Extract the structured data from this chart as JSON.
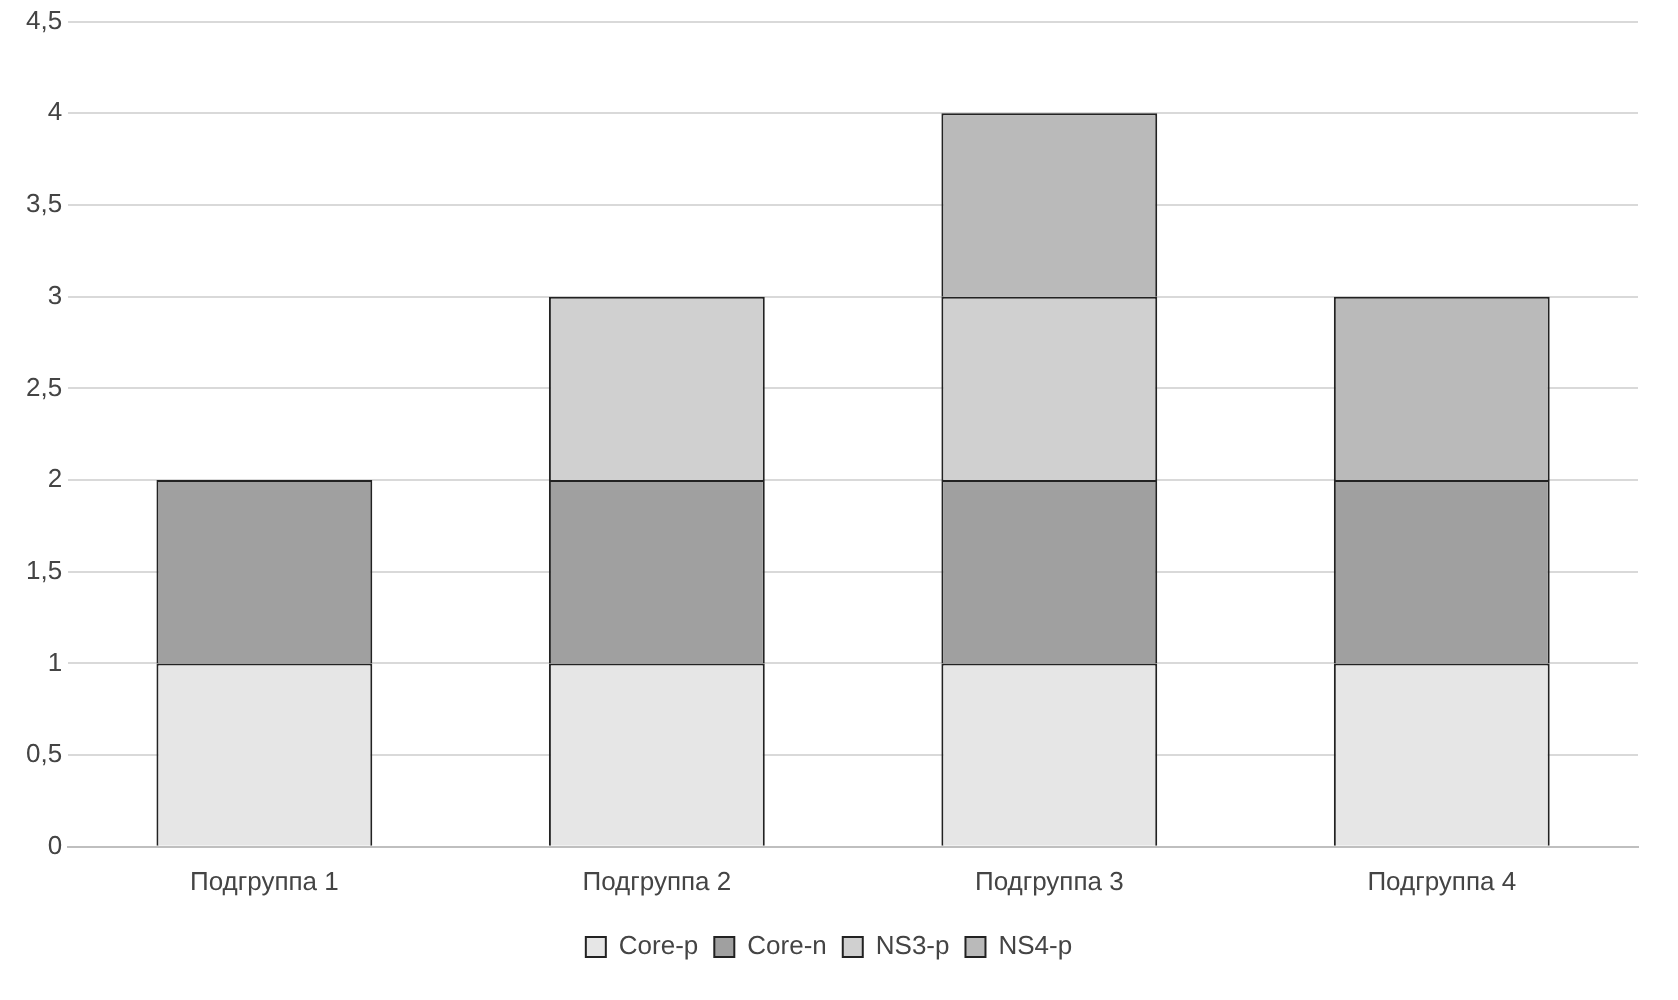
{
  "chart_data": {
    "type": "bar",
    "stacked": true,
    "categories": [
      "Подгруппа 1",
      "Подгруппа 2",
      "Подгруппа 3",
      "Подгруппа 4"
    ],
    "series": [
      {
        "name": "Core-p",
        "color": "#e6e6e6",
        "values": [
          1,
          1,
          1,
          1
        ]
      },
      {
        "name": "Core-n",
        "color": "#a0a0a0",
        "values": [
          1,
          1,
          1,
          1
        ]
      },
      {
        "name": "NS3-p",
        "color": "#d0d0d0",
        "values": [
          null,
          1,
          1,
          null
        ]
      },
      {
        "name": "NS4-p",
        "color": "#bababa",
        "values": [
          null,
          null,
          1,
          1
        ]
      }
    ],
    "ylim": [
      0,
      4.5
    ],
    "yticks": [
      0,
      {
        "value": 0.5,
        "label": "0,5"
      },
      1,
      {
        "value": 1.5,
        "label": "1,5"
      },
      2,
      {
        "value": 2.5,
        "label": "2,5"
      },
      3,
      {
        "value": 3.5,
        "label": "3,5"
      },
      4,
      {
        "value": 4.5,
        "label": "4,5"
      }
    ],
    "grid": "y",
    "legend": "bottom"
  }
}
